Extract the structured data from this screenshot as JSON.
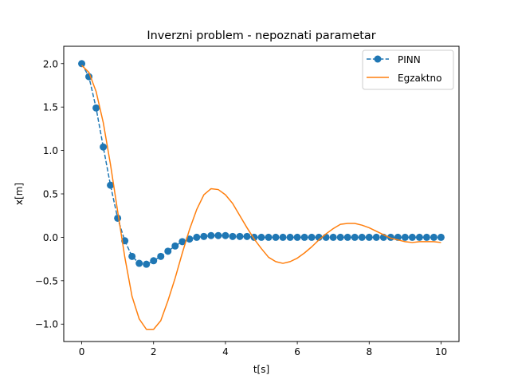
{
  "chart_data": {
    "type": "line",
    "title": "Inverzni problem - nepoznati parametar",
    "xlabel": "t[s]",
    "ylabel": "x[m]",
    "xlim": [
      -0.5,
      10.5
    ],
    "ylim": [
      -1.2,
      2.2
    ],
    "xticks": [
      0,
      2,
      4,
      6,
      8,
      10
    ],
    "xtick_labels": [
      "0",
      "2",
      "4",
      "6",
      "8",
      "10"
    ],
    "yticks": [
      -1.0,
      -0.5,
      0.0,
      0.5,
      1.0,
      1.5,
      2.0
    ],
    "ytick_labels": [
      "−1.0",
      "−0.5",
      "0.0",
      "0.5",
      "1.0",
      "1.5",
      "2.0"
    ],
    "grid": false,
    "legend_position": "top-right",
    "series": [
      {
        "name": "PINN",
        "color": "#1f77b4",
        "style": "dashed-with-markers",
        "x": [
          0,
          0.2,
          0.4,
          0.6,
          0.8,
          1.0,
          1.2,
          1.4,
          1.6,
          1.8,
          2.0,
          2.2,
          2.4,
          2.6,
          2.8,
          3.0,
          3.2,
          3.4,
          3.6,
          3.8,
          4.0,
          4.2,
          4.4,
          4.6,
          4.8,
          5.0,
          5.2,
          5.4,
          5.6,
          5.8,
          6.0,
          6.2,
          6.4,
          6.6,
          6.8,
          7.0,
          7.2,
          7.4,
          7.6,
          7.8,
          8.0,
          8.2,
          8.4,
          8.6,
          8.8,
          9.0,
          9.2,
          9.4,
          9.6,
          9.8,
          10.0
        ],
        "y": [
          2.0,
          1.85,
          1.49,
          1.04,
          0.6,
          0.22,
          -0.04,
          -0.22,
          -0.3,
          -0.31,
          -0.27,
          -0.22,
          -0.16,
          -0.1,
          -0.05,
          -0.02,
          0.0,
          0.01,
          0.02,
          0.02,
          0.02,
          0.01,
          0.01,
          0.01,
          0.0,
          0.0,
          0.0,
          0.0,
          0.0,
          0.0,
          0.0,
          0.0,
          0.0,
          0.0,
          0.0,
          0.0,
          0.0,
          0.0,
          0.0,
          0.0,
          0.0,
          0.0,
          0.0,
          0.0,
          0.0,
          0.0,
          0.0,
          0.0,
          0.0,
          0.0,
          0.0
        ]
      },
      {
        "name": "Egzaktno",
        "color": "#ff7f0e",
        "style": "solid",
        "x": [
          0,
          0.2,
          0.4,
          0.6,
          0.8,
          1.0,
          1.2,
          1.4,
          1.6,
          1.8,
          2.0,
          2.2,
          2.4,
          2.6,
          2.8,
          3.0,
          3.2,
          3.4,
          3.6,
          3.8,
          4.0,
          4.2,
          4.4,
          4.6,
          4.8,
          5.0,
          5.2,
          5.4,
          5.6,
          5.8,
          6.0,
          6.2,
          6.4,
          6.6,
          6.8,
          7.0,
          7.2,
          7.4,
          7.6,
          7.8,
          8.0,
          8.2,
          8.4,
          8.6,
          8.8,
          9.0,
          9.2,
          9.4,
          9.6,
          9.8,
          10.0
        ],
        "y": [
          1.98,
          1.9,
          1.68,
          1.32,
          0.84,
          0.3,
          -0.23,
          -0.68,
          -0.94,
          -1.06,
          -1.06,
          -0.96,
          -0.73,
          -0.47,
          -0.18,
          0.09,
          0.32,
          0.49,
          0.56,
          0.55,
          0.49,
          0.39,
          0.25,
          0.11,
          -0.02,
          -0.13,
          -0.23,
          -0.28,
          -0.3,
          -0.28,
          -0.24,
          -0.18,
          -0.11,
          -0.03,
          0.04,
          0.1,
          0.15,
          0.16,
          0.16,
          0.14,
          0.11,
          0.07,
          0.03,
          -0.01,
          -0.03,
          -0.05,
          -0.06,
          -0.05,
          -0.05,
          -0.05,
          -0.06
        ]
      }
    ]
  }
}
